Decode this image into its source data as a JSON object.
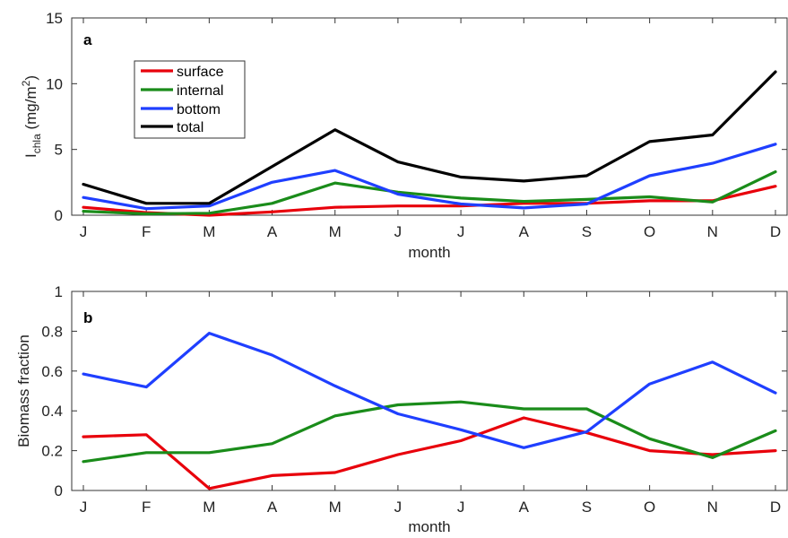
{
  "chart_data": [
    {
      "type": "line",
      "panel_label": "a",
      "categories": [
        "J",
        "F",
        "M",
        "A",
        "M",
        "J",
        "J",
        "A",
        "S",
        "O",
        "N",
        "D"
      ],
      "xlabel": "month",
      "ylabel_main": "I",
      "ylabel_sub": "chla",
      "ylabel_unit": " (mg/m",
      "ylabel_sup": "2",
      "ylabel_close": ")",
      "ylim": [
        0,
        15
      ],
      "yticks": [
        0,
        5,
        10,
        15
      ],
      "legend_position": "upper-left",
      "series": [
        {
          "name": "surface",
          "color": "#e8000b",
          "values": [
            0.6,
            0.2,
            0.0,
            0.25,
            0.6,
            0.7,
            0.7,
            0.9,
            0.9,
            1.1,
            1.1,
            2.2
          ]
        },
        {
          "name": "internal",
          "color": "#1a8c1a",
          "values": [
            0.3,
            0.1,
            0.15,
            0.9,
            2.45,
            1.75,
            1.3,
            1.05,
            1.2,
            1.4,
            1.0,
            3.3
          ]
        },
        {
          "name": "bottom",
          "color": "#1f3fff",
          "values": [
            1.35,
            0.5,
            0.7,
            2.5,
            3.4,
            1.6,
            0.85,
            0.55,
            0.85,
            3.0,
            3.95,
            5.4
          ]
        },
        {
          "name": "total",
          "color": "#000000",
          "values": [
            2.35,
            0.9,
            0.9,
            3.7,
            6.5,
            4.05,
            2.9,
            2.6,
            3.0,
            5.6,
            6.1,
            10.9
          ]
        }
      ]
    },
    {
      "type": "line",
      "panel_label": "b",
      "categories": [
        "J",
        "F",
        "M",
        "A",
        "M",
        "J",
        "J",
        "A",
        "S",
        "O",
        "N",
        "D"
      ],
      "xlabel": "month",
      "ylabel": "Biomass fraction",
      "ylim": [
        0,
        1
      ],
      "yticks": [
        0,
        0.2,
        0.4,
        0.6,
        0.8,
        1
      ],
      "ytick_labels": [
        "0",
        "0.2",
        "0.4",
        "0.6",
        "0.8",
        "1"
      ],
      "series": [
        {
          "name": "surface",
          "color": "#e8000b",
          "values": [
            0.27,
            0.28,
            0.01,
            0.075,
            0.09,
            0.18,
            0.25,
            0.365,
            0.29,
            0.2,
            0.18,
            0.2
          ]
        },
        {
          "name": "internal",
          "color": "#1a8c1a",
          "values": [
            0.145,
            0.19,
            0.19,
            0.235,
            0.375,
            0.43,
            0.445,
            0.41,
            0.41,
            0.26,
            0.165,
            0.3
          ]
        },
        {
          "name": "bottom",
          "color": "#1f3fff",
          "values": [
            0.585,
            0.52,
            0.79,
            0.68,
            0.525,
            0.385,
            0.305,
            0.215,
            0.295,
            0.535,
            0.645,
            0.49
          ]
        }
      ]
    }
  ]
}
